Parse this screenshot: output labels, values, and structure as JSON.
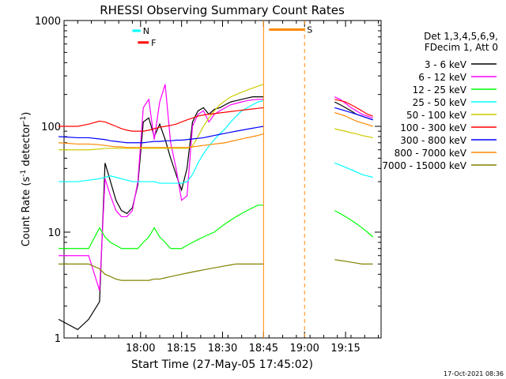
{
  "chart_data": {
    "type": "line",
    "title": "RHESSI Observing Summary Count Rates",
    "xlabel": "Start Time (27-May-05 17:45:02)",
    "ylabel_main": "Count Rate (s",
    "ylabel_sup1": "-1",
    "ylabel_mid": " detector",
    "ylabel_sup2": "-1",
    "ylabel_end": ")",
    "y_scale": "log",
    "xlim_min": [
      -13,
      103
    ],
    "ylim": [
      1,
      1000
    ],
    "x_ticks": [
      {
        "label": "18:00",
        "value": 15
      },
      {
        "label": "18:15",
        "value": 30
      },
      {
        "label": "18:30",
        "value": 45
      },
      {
        "label": "18:45",
        "value": 60
      },
      {
        "label": "19:00",
        "value": 75
      },
      {
        "label": "19:15",
        "value": 90
      }
    ],
    "y_ticks": [
      {
        "label": "1",
        "value": 1
      },
      {
        "label": "10",
        "value": 10
      },
      {
        "label": "100",
        "value": 100
      },
      {
        "label": "1000",
        "value": 1000
      }
    ],
    "legend": {
      "header_line1": "Det 1,3,4,5,6,9,",
      "header_line2": "FDecim 1, Att 0",
      "placement": "right"
    },
    "series": [
      {
        "name": "3 - 6 keV",
        "color": "#000000",
        "x": [
          -15,
          -8,
          -4,
          0,
          2,
          4,
          6,
          8,
          10,
          12,
          14,
          16,
          18,
          20,
          22,
          24,
          26,
          28,
          30,
          32,
          34,
          36,
          38,
          40,
          42,
          44,
          46,
          48,
          50,
          52,
          54,
          56,
          58,
          60
        ],
        "y": [
          1.5,
          1.2,
          1.5,
          2.2,
          45,
          30,
          20,
          16,
          15,
          17,
          28,
          110,
          120,
          80,
          105,
          75,
          50,
          35,
          25,
          40,
          110,
          140,
          150,
          130,
          145,
          150,
          160,
          170,
          175,
          180,
          185,
          190,
          190,
          190
        ]
      },
      {
        "name": "6 - 12 keV",
        "color": "#ff00ff",
        "x": [
          -15,
          -8,
          -4,
          0,
          2,
          4,
          6,
          8,
          10,
          12,
          14,
          16,
          18,
          20,
          22,
          24,
          26,
          28,
          30,
          32,
          34,
          36,
          38,
          40,
          42,
          44,
          46,
          48,
          50,
          52,
          54,
          56,
          58,
          60
        ],
        "y": [
          6,
          6,
          6,
          2.8,
          32,
          22,
          16,
          14,
          14,
          16,
          30,
          150,
          180,
          75,
          170,
          250,
          70,
          40,
          20,
          22,
          100,
          130,
          140,
          110,
          130,
          140,
          150,
          160,
          165,
          170,
          175,
          178,
          180,
          180
        ]
      },
      {
        "name": "12 - 25 keV",
        "color": "#00ff00",
        "x": [
          -15,
          -8,
          -4,
          0,
          2,
          4,
          6,
          8,
          10,
          12,
          14,
          16,
          18,
          20,
          22,
          24,
          26,
          28,
          30,
          32,
          34,
          36,
          38,
          40,
          42,
          44,
          46,
          48,
          50,
          52,
          54,
          56,
          58,
          60
        ],
        "y": [
          7,
          7,
          7,
          11,
          9,
          8,
          7.5,
          7,
          7,
          7,
          7,
          8,
          9,
          11,
          9,
          8,
          7,
          7,
          7,
          7.5,
          8,
          8.5,
          9,
          9.5,
          10,
          11,
          12,
          13,
          14,
          15,
          16,
          17,
          18,
          18
        ]
      },
      {
        "name": "25 - 50 keV",
        "color": "#00ffff",
        "x": [
          -15,
          -8,
          -4,
          0,
          2,
          4,
          6,
          8,
          10,
          12,
          14,
          16,
          18,
          20,
          22,
          24,
          26,
          28,
          30,
          32,
          34,
          36,
          38,
          40,
          42,
          44,
          46,
          48,
          50,
          52,
          54,
          56,
          58,
          60
        ],
        "y": [
          30,
          30,
          31,
          32,
          33,
          34,
          33,
          32,
          31,
          30,
          30,
          30,
          30,
          30,
          29,
          29,
          29,
          29,
          29,
          30,
          35,
          45,
          55,
          65,
          75,
          85,
          95,
          110,
          125,
          140,
          150,
          160,
          170,
          175
        ]
      },
      {
        "name": "50 - 100 keV",
        "color": "#cccc00",
        "x": [
          -15,
          -8,
          -4,
          0,
          2,
          4,
          6,
          8,
          10,
          12,
          14,
          16,
          18,
          20,
          22,
          24,
          26,
          28,
          30,
          32,
          34,
          36,
          38,
          40,
          42,
          44,
          46,
          48,
          50,
          52,
          54,
          56,
          58,
          60
        ],
        "y": [
          60,
          60,
          60,
          61,
          62,
          62,
          62,
          62,
          62,
          62,
          62,
          62,
          62,
          62,
          62,
          62,
          62,
          62,
          62,
          62,
          65,
          80,
          100,
          120,
          140,
          160,
          175,
          190,
          200,
          210,
          220,
          230,
          240,
          250
        ]
      },
      {
        "name": "100 - 300 keV",
        "color": "#ff0000",
        "x": [
          -15,
          -8,
          -4,
          0,
          2,
          4,
          6,
          8,
          10,
          12,
          14,
          16,
          18,
          20,
          22,
          24,
          26,
          28,
          30,
          32,
          34,
          36,
          38,
          40,
          42,
          44,
          46,
          48,
          50,
          52,
          54,
          56,
          58,
          60
        ],
        "y": [
          100,
          100,
          105,
          112,
          110,
          105,
          100,
          95,
          92,
          90,
          90,
          90,
          92,
          95,
          98,
          100,
          102,
          105,
          110,
          115,
          120,
          125,
          128,
          130,
          132,
          134,
          136,
          138,
          140,
          142,
          144,
          146,
          148,
          150
        ]
      },
      {
        "name": "300 - 800 keV",
        "color": "#0000ff",
        "x": [
          -15,
          -8,
          -4,
          0,
          2,
          4,
          6,
          8,
          10,
          12,
          14,
          16,
          18,
          20,
          22,
          24,
          26,
          28,
          30,
          32,
          34,
          36,
          38,
          40,
          42,
          44,
          46,
          48,
          50,
          52,
          54,
          56,
          58,
          60
        ],
        "y": [
          80,
          78,
          78,
          76,
          75,
          73,
          72,
          71,
          70,
          70,
          70,
          70,
          71,
          72,
          72,
          73,
          73,
          74,
          74,
          75,
          76,
          77,
          78,
          80,
          82,
          84,
          86,
          88,
          90,
          92,
          94,
          96,
          98,
          100
        ]
      },
      {
        "name": "800 - 7000 keV",
        "color": "#ff8800",
        "x": [
          -15,
          -8,
          -4,
          0,
          2,
          4,
          6,
          8,
          10,
          12,
          14,
          16,
          18,
          20,
          22,
          24,
          26,
          28,
          30,
          32,
          34,
          36,
          38,
          40,
          42,
          44,
          46,
          48,
          50,
          52,
          54,
          56,
          58,
          60
        ],
        "y": [
          70,
          68,
          68,
          67,
          66,
          65,
          64,
          64,
          63,
          63,
          63,
          63,
          63,
          63,
          63,
          63,
          63,
          63,
          63,
          63,
          64,
          65,
          66,
          67,
          68,
          69,
          70,
          72,
          74,
          76,
          78,
          80,
          82,
          85
        ]
      },
      {
        "name": "7000 - 15000 keV",
        "color": "#808000",
        "x": [
          -15,
          -8,
          -4,
          0,
          2,
          4,
          6,
          8,
          10,
          12,
          14,
          16,
          18,
          20,
          22,
          24,
          26,
          28,
          30,
          32,
          34,
          36,
          38,
          40,
          42,
          44,
          46,
          48,
          50,
          52,
          54,
          56,
          58,
          60
        ],
        "y": [
          5,
          5,
          5,
          4.5,
          4,
          3.8,
          3.6,
          3.5,
          3.5,
          3.5,
          3.5,
          3.5,
          3.5,
          3.6,
          3.6,
          3.7,
          3.8,
          3.9,
          4,
          4.1,
          4.2,
          4.3,
          4.4,
          4.5,
          4.6,
          4.7,
          4.8,
          4.9,
          5,
          5,
          5,
          5,
          5,
          5
        ]
      }
    ],
    "series_after_gap": {
      "x": [
        86,
        88,
        90,
        92,
        94,
        96,
        98,
        100
      ],
      "y_by_series": [
        [
          170,
          160,
          150,
          140,
          130,
          125,
          120,
          115
        ],
        [
          190,
          180,
          165,
          150,
          140,
          130,
          125,
          120
        ],
        [
          16,
          15,
          14,
          13,
          12,
          11,
          10,
          9
        ],
        [
          45,
          43,
          41,
          39,
          37,
          35,
          34,
          33
        ],
        [
          95,
          92,
          90,
          87,
          85,
          82,
          80,
          78
        ],
        [
          180,
          175,
          170,
          160,
          150,
          140,
          130,
          125
        ],
        [
          150,
          145,
          140,
          135,
          130,
          125,
          120,
          115
        ],
        [
          135,
          130,
          125,
          118,
          112,
          108,
          104,
          100
        ],
        [
          5.5,
          5.4,
          5.3,
          5.2,
          5.1,
          5.0,
          5.0,
          5.0
        ]
      ]
    },
    "markers": [
      {
        "label": "N",
        "color": "#00ffff",
        "x": [
          12,
          15
        ],
        "y": 800
      },
      {
        "label": "F",
        "color": "#ff0000",
        "x": [
          14,
          18
        ],
        "y": 620
      },
      {
        "label": "S",
        "color": "#ff8800",
        "x": [
          62,
          75
        ],
        "y": 820
      }
    ],
    "gap": {
      "x": [
        60,
        75
      ]
    }
  },
  "timestamp": "17-Oct-2021 08:36"
}
